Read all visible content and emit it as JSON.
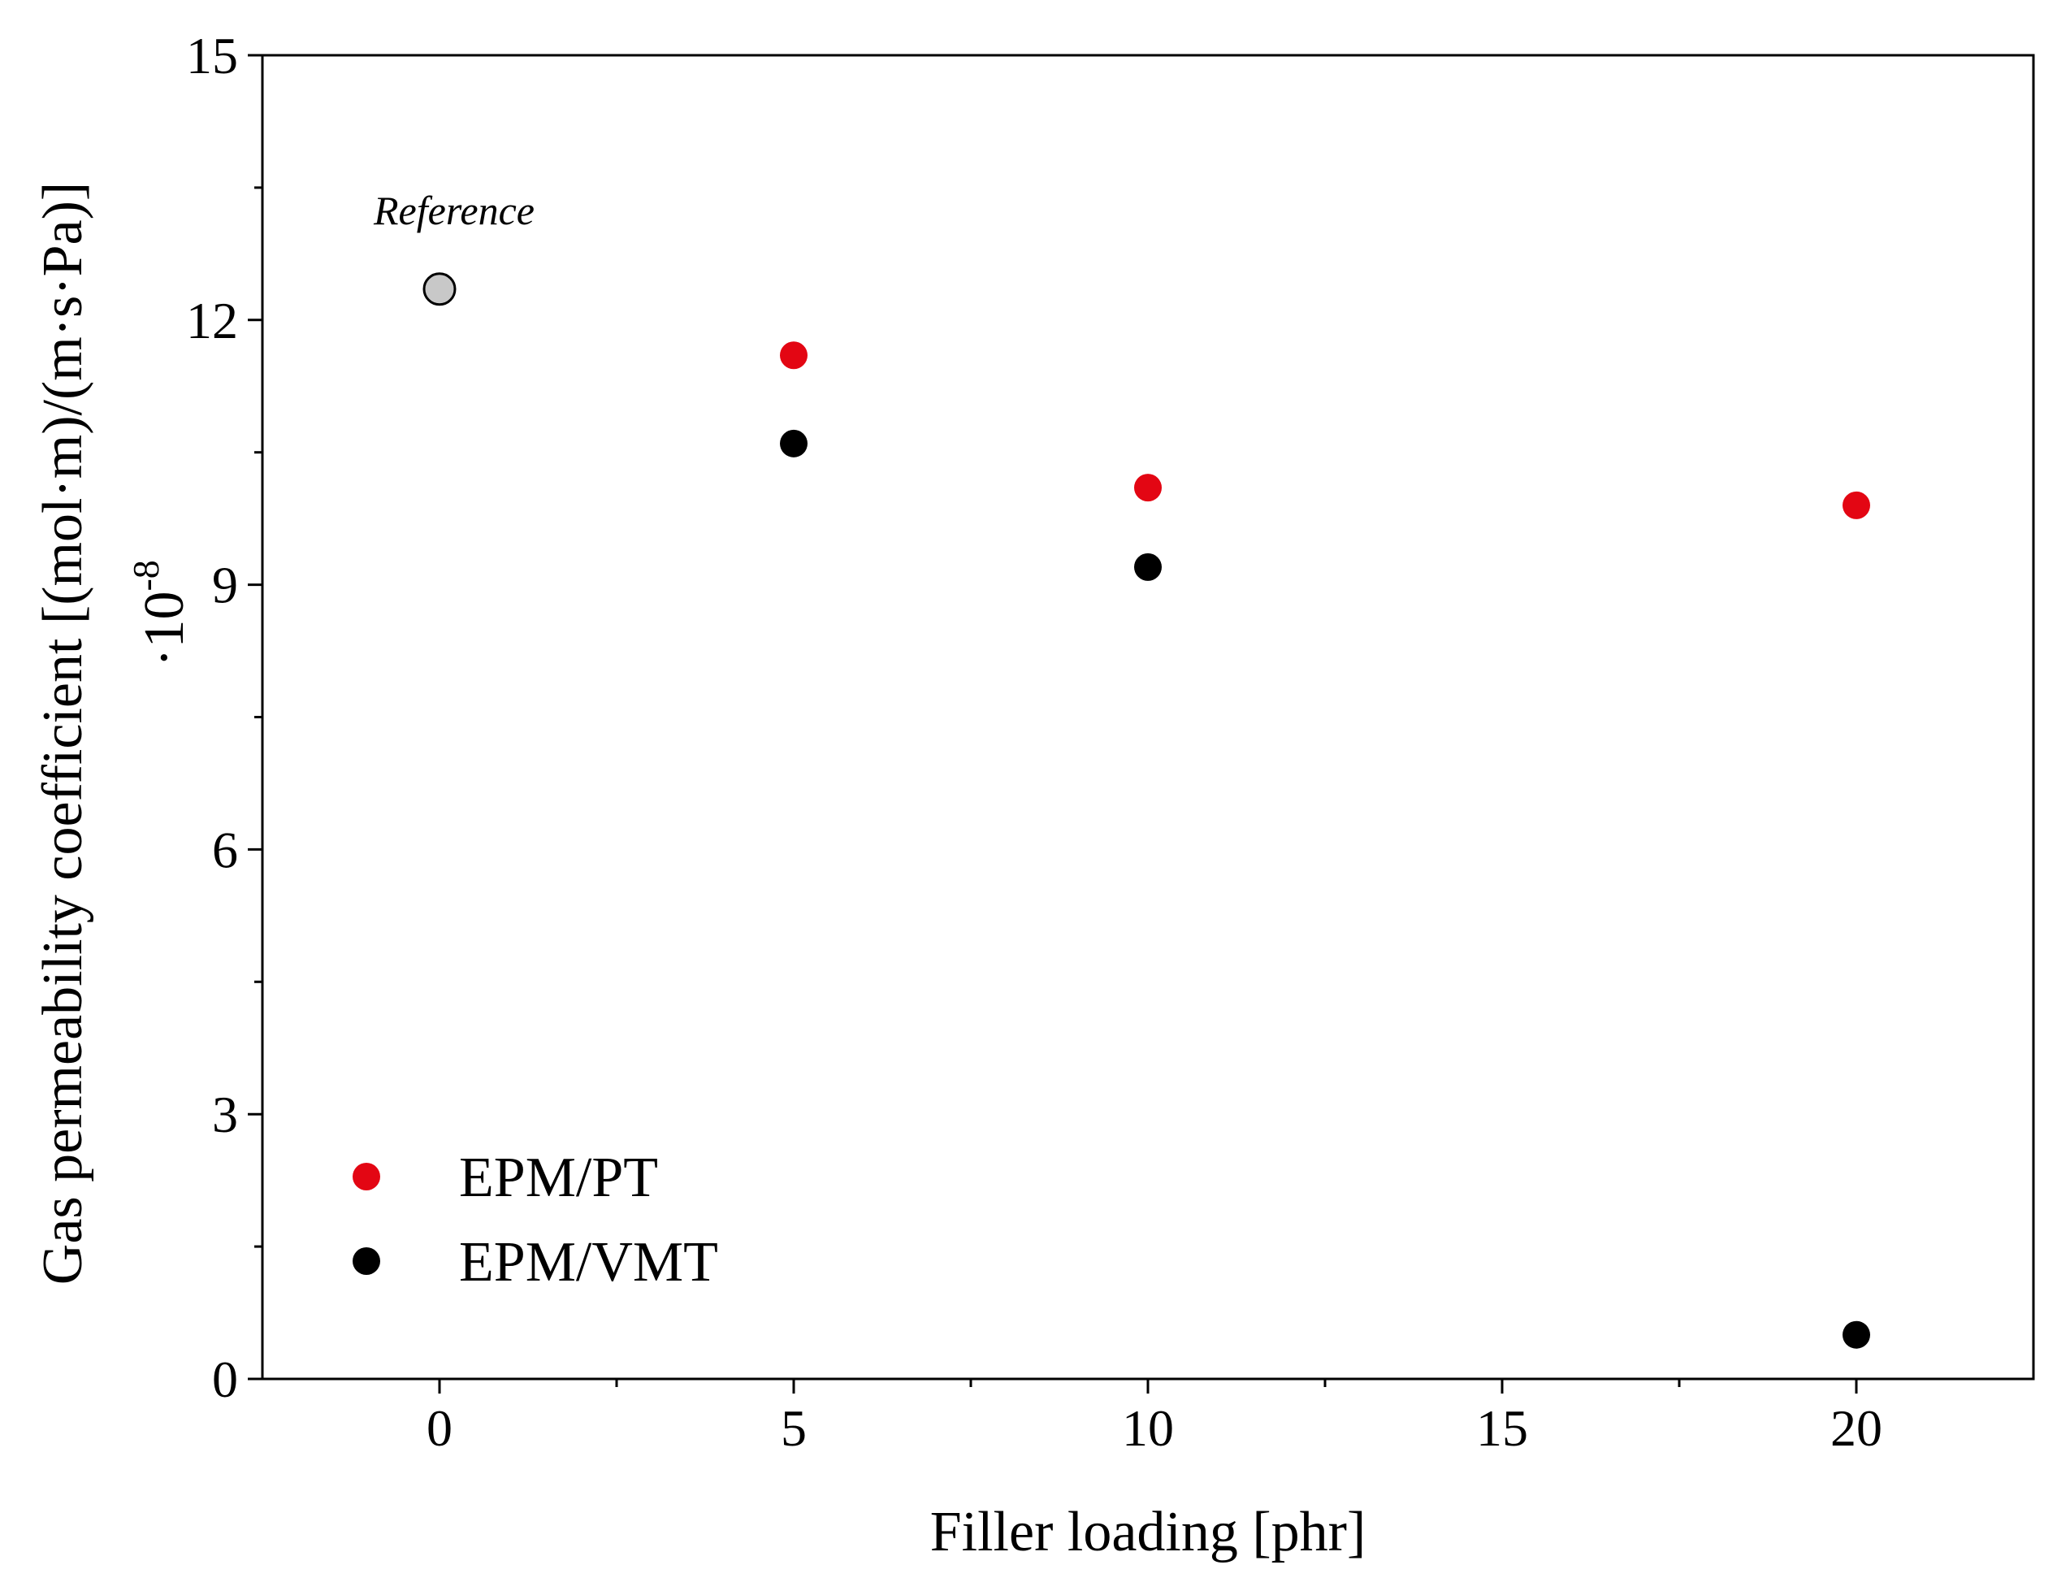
{
  "chart_data": {
    "type": "scatter",
    "xlabel": "Filler loading [phr]",
    "ylabel": "Gas permeability coefficient [(mol·m)/(m·s·Pa)]",
    "ylabel_factor": "·10",
    "ylabel_exponent": "-8",
    "xlim": [
      -2.5,
      22.5
    ],
    "ylim": [
      0,
      15
    ],
    "x_ticks": [
      0,
      5,
      10,
      15,
      20
    ],
    "y_ticks": [
      0,
      3,
      6,
      9,
      12,
      15
    ],
    "x_tick_labels": [
      "0",
      "5",
      "10",
      "15",
      "20"
    ],
    "y_tick_labels": [
      "0",
      "3",
      "6",
      "9",
      "12",
      "15"
    ],
    "grid": false,
    "legend_position": "bottom-left",
    "series": [
      {
        "name": "EPM/PT",
        "color": "#e30613",
        "x": [
          5,
          10,
          20
        ],
        "y": [
          11.6,
          10.1,
          9.9
        ]
      },
      {
        "name": "EPM/VMT",
        "color": "#000000",
        "x": [
          5,
          10,
          20
        ],
        "y": [
          10.6,
          9.2,
          0.5
        ]
      }
    ],
    "reference": {
      "label": "Reference",
      "x": 0,
      "y": 12.35,
      "color": "#c8c8c8"
    }
  }
}
